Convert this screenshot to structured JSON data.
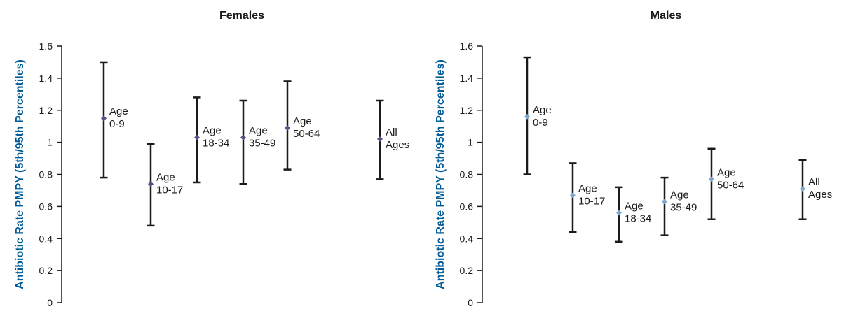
{
  "chart_data": [
    {
      "type": "errorbar",
      "title": "Females",
      "ylabel": "Antibiotic Rate PMPY (5th/95th Percentiles)",
      "ylim": [
        0,
        1.6
      ],
      "yticks": [
        "0",
        "0.2",
        "0.4",
        "0.6",
        "0.8",
        "1",
        "1.2",
        "1.4",
        "1.6"
      ],
      "marker_color": "#5b4f8a",
      "points": [
        {
          "label": [
            "Age",
            "0-9"
          ],
          "value": 1.15,
          "low": 0.78,
          "high": 1.5
        },
        {
          "label": [
            "Age",
            "10-17"
          ],
          "value": 0.74,
          "low": 0.48,
          "high": 0.99
        },
        {
          "label": [
            "Age",
            "18-34"
          ],
          "value": 1.03,
          "low": 0.75,
          "high": 1.28
        },
        {
          "label": [
            "Age",
            "35-49"
          ],
          "value": 1.03,
          "low": 0.74,
          "high": 1.26
        },
        {
          "label": [
            "Age",
            "50-64"
          ],
          "value": 1.09,
          "low": 0.83,
          "high": 1.38
        },
        {
          "label": [
            "All",
            "Ages"
          ],
          "value": 1.02,
          "low": 0.77,
          "high": 1.26
        }
      ]
    },
    {
      "type": "errorbar",
      "title": "Males",
      "ylabel": "Antibiotic Rate PMPY (5th/95th Percentiles)",
      "ylim": [
        0,
        1.6
      ],
      "yticks": [
        "0",
        "0.2",
        "0.4",
        "0.6",
        "0.8",
        "1",
        "1.2",
        "1.4",
        "1.6"
      ],
      "marker_color": "#7ea6cc",
      "points": [
        {
          "label": [
            "Age",
            "0-9"
          ],
          "value": 1.16,
          "low": 0.8,
          "high": 1.53
        },
        {
          "label": [
            "Age",
            "10-17"
          ],
          "value": 0.67,
          "low": 0.44,
          "high": 0.87
        },
        {
          "label": [
            "Age",
            "18-34"
          ],
          "value": 0.56,
          "low": 0.38,
          "high": 0.72
        },
        {
          "label": [
            "Age",
            "35-49"
          ],
          "value": 0.63,
          "low": 0.42,
          "high": 0.78
        },
        {
          "label": [
            "Age",
            "50-64"
          ],
          "value": 0.77,
          "low": 0.52,
          "high": 0.96
        },
        {
          "label": [
            "All",
            "Ages"
          ],
          "value": 0.71,
          "low": 0.52,
          "high": 0.89
        }
      ]
    }
  ]
}
